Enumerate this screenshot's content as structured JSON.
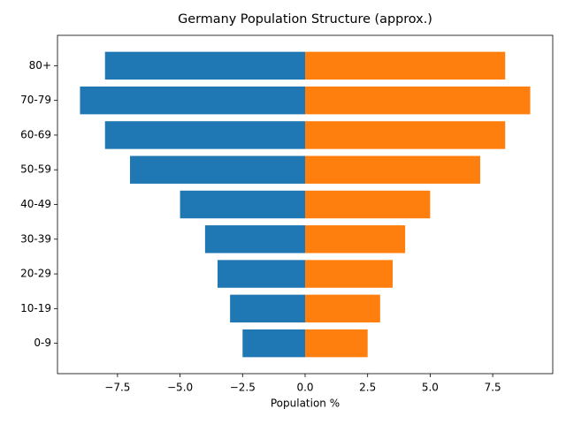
{
  "chart_data": {
    "type": "bar",
    "orientation": "horizontal",
    "title": "Germany Population Structure (approx.)",
    "x_label": "Population %",
    "categories": [
      "0-9",
      "10-19",
      "20-29",
      "30-39",
      "40-49",
      "50-59",
      "60-69",
      "70-79",
      "80+"
    ],
    "series": [
      {
        "color": "#1f77b4",
        "values": [
          -2.5,
          -3,
          -3.5,
          -4,
          -5,
          -7,
          -8,
          -9,
          -8
        ]
      },
      {
        "color": "#ff7f0e",
        "values": [
          2.5,
          3,
          3.5,
          4,
          5,
          7,
          8,
          9,
          8
        ]
      }
    ],
    "xlim": [
      -9.9,
      9.9
    ],
    "xticks": [
      {
        "value": -7.5,
        "label": "−7.5"
      },
      {
        "value": -5,
        "label": "−5.0"
      },
      {
        "value": -2.5,
        "label": "−2.5"
      },
      {
        "value": 0,
        "label": "0.0"
      },
      2.5,
      {
        "value": 5,
        "label": "5.0"
      },
      7.5
    ],
    "grid": false
  }
}
